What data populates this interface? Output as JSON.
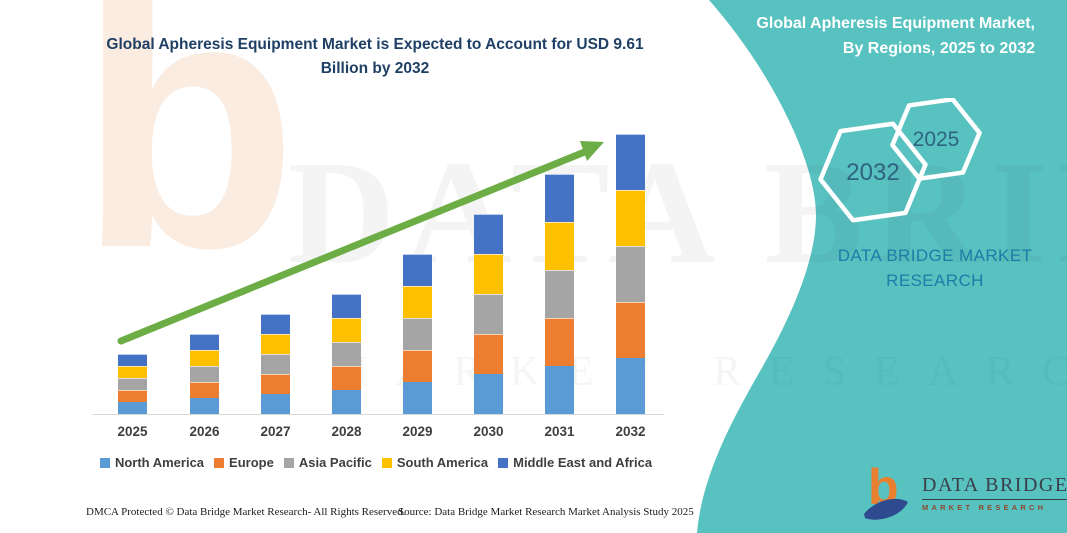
{
  "header": {
    "title": "Global Apheresis Equipment Market is Expected to Account for USD 9.61 Billion by 2032"
  },
  "sidebar": {
    "bg_color": "#58c2c1",
    "title": "Global Apheresis Equipment Market, By Regions, 2025 to 2032",
    "hexagons": [
      {
        "label": "2032"
      },
      {
        "label": "2025"
      }
    ],
    "brand_text": "DATA BRIDGE MARKET RESEARCH",
    "logo": {
      "name": "DATA BRIDGE",
      "tagline": "MARKET RESEARCH",
      "b_color": "#e8802f",
      "swoosh_color": "#2e4b8f"
    }
  },
  "chart_data": {
    "type": "bar",
    "stacked": true,
    "title": "Global Apheresis Equipment Market is Expected to Account for USD 9.61 Billion by 2032",
    "categories": [
      "2025",
      "2026",
      "2027",
      "2028",
      "2029",
      "2030",
      "2031",
      "2032"
    ],
    "series": [
      {
        "name": "North America",
        "color": "#5b9bd5",
        "values": [
          0.42,
          0.55,
          0.69,
          0.83,
          1.1,
          1.37,
          1.65,
          1.92
        ]
      },
      {
        "name": "Europe",
        "color": "#ed7d31",
        "values": [
          0.42,
          0.55,
          0.69,
          0.83,
          1.1,
          1.37,
          1.65,
          1.92
        ]
      },
      {
        "name": "Asia Pacific",
        "color": "#a5a5a5",
        "values": [
          0.42,
          0.55,
          0.69,
          0.83,
          1.1,
          1.37,
          1.65,
          1.92
        ]
      },
      {
        "name": "South America",
        "color": "#ffc000",
        "values": [
          0.42,
          0.55,
          0.69,
          0.83,
          1.1,
          1.37,
          1.65,
          1.92
        ]
      },
      {
        "name": "Middle East and Africa",
        "color": "#4472c4",
        "values": [
          0.42,
          0.55,
          0.69,
          0.83,
          1.1,
          1.37,
          1.65,
          1.92
        ]
      }
    ],
    "estimated_totals_usd_billion": [
      2.11,
      2.77,
      3.46,
      4.15,
      5.5,
      6.85,
      8.23,
      9.61
    ],
    "units": "USD billion (estimated from bar heights; 2032 total anchored to USD 9.61 billion stated in title; regional segments appear equal)",
    "xlabel": "",
    "ylabel": "",
    "axis": {
      "y_axis_visible": false,
      "gridlines": false,
      "ylim": [
        0,
        10
      ]
    },
    "legend_position": "bottom",
    "trend_arrow": {
      "present": true,
      "color": "#6cae45",
      "direction": "up-right"
    }
  },
  "watermark": {
    "line1": "DATA BRIDGE",
    "line2": "MARKET RESEARCH",
    "b_glyph": "b"
  },
  "footer": {
    "left": "DMCA Protected © Data Bridge Market Research-  All Rights Reserved.",
    "right": "Source: Data Bridge Market Research  Market Analysis Study 2025"
  }
}
